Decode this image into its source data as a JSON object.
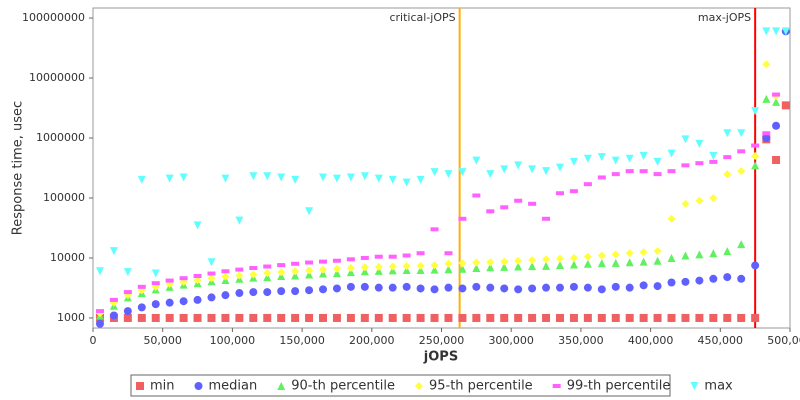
{
  "chart_data": {
    "type": "scatter",
    "x_label": "jOPS",
    "y_label": "Response time, usec",
    "log_y": true,
    "xlim": [
      0,
      500000
    ],
    "ylim": [
      680,
      147000000
    ],
    "xticks": [
      0,
      {
        "value": 50000,
        "label": "50,000"
      },
      {
        "value": 100000,
        "label": "100,000"
      },
      {
        "value": 150000,
        "label": "150,000"
      },
      {
        "value": 200000,
        "label": "200,000"
      },
      {
        "value": 250000,
        "label": "250,000"
      },
      {
        "value": 300000,
        "label": "300,000"
      },
      {
        "value": 350000,
        "label": "350,000"
      },
      {
        "value": 400000,
        "label": "400,000"
      },
      {
        "value": 450000,
        "label": "450,000"
      },
      {
        "value": 500000,
        "label": "500,000"
      }
    ],
    "yticks": [
      1000,
      10000,
      100000,
      1000000,
      10000000,
      100000000
    ],
    "markers": [
      {
        "label": "critical-jOPS",
        "value": 263000,
        "color": "#ffb000"
      },
      {
        "label": "max-jOPS",
        "value": 475000,
        "color": "#ff0000"
      }
    ],
    "x": [
      5000,
      15000,
      25000,
      35000,
      45000,
      55000,
      65000,
      75000,
      85000,
      95000,
      105000,
      115000,
      125000,
      135000,
      145000,
      155000,
      165000,
      175000,
      185000,
      195000,
      205000,
      215000,
      225000,
      235000,
      245000,
      255000,
      265000,
      275000,
      285000,
      295000,
      305000,
      315000,
      325000,
      335000,
      345000,
      355000,
      365000,
      375000,
      385000,
      395000,
      405000,
      415000,
      425000,
      435000,
      445000,
      455000,
      465000,
      475000,
      483000,
      490000,
      497000
    ],
    "series": [
      {
        "name": "min",
        "color": "#f06060",
        "marker": "square",
        "values": [
          1000,
          1000,
          1000,
          1000,
          1000,
          1000,
          1000,
          1000,
          1000,
          1000,
          1000,
          1000,
          1000,
          1000,
          1000,
          1000,
          1000,
          1000,
          1000,
          1000,
          1000,
          1000,
          1000,
          1000,
          1000,
          1000,
          1000,
          1000,
          1000,
          1000,
          1000,
          1000,
          1000,
          1000,
          1000,
          1000,
          1000,
          1000,
          1000,
          1000,
          1000,
          1000,
          1000,
          1000,
          1000,
          1000,
          1000,
          1000,
          950000,
          430000,
          3500000
        ]
      },
      {
        "name": "median",
        "color": "#6060ff",
        "marker": "circle",
        "values": [
          800,
          1100,
          1300,
          1500,
          1700,
          1800,
          1900,
          2000,
          2200,
          2400,
          2600,
          2700,
          2700,
          2800,
          2800,
          2900,
          3000,
          3100,
          3300,
          3300,
          3200,
          3200,
          3300,
          3100,
          3000,
          3200,
          3100,
          3300,
          3200,
          3100,
          3000,
          3100,
          3200,
          3200,
          3300,
          3200,
          3000,
          3300,
          3200,
          3500,
          3400,
          3900,
          4000,
          4200,
          4500,
          4800,
          4500,
          7500,
          1000000,
          1600000,
          60000000
        ]
      },
      {
        "name": "90-th percentile",
        "color": "#60f060",
        "marker": "triangle",
        "values": [
          1100,
          1600,
          2200,
          2600,
          3000,
          3300,
          3600,
          3800,
          4100,
          4300,
          4500,
          4700,
          4800,
          5000,
          5100,
          5300,
          5500,
          5600,
          5800,
          6000,
          6100,
          6200,
          6300,
          6300,
          6400,
          6500,
          6600,
          6800,
          7000,
          7100,
          7200,
          7300,
          7400,
          7600,
          7800,
          8000,
          8200,
          8300,
          8500,
          8700,
          9000,
          10000,
          11000,
          11500,
          12000,
          13000,
          17000,
          350000,
          4500000,
          4000000,
          null
        ]
      },
      {
        "name": "95-th percentile",
        "color": "#ffff40",
        "marker": "diamond",
        "values": [
          1200,
          1800,
          2400,
          2900,
          3300,
          3700,
          4000,
          4300,
          4600,
          4900,
          5100,
          5300,
          5600,
          5800,
          6000,
          6200,
          6400,
          6600,
          6800,
          7000,
          7100,
          7200,
          7300,
          7400,
          7600,
          8000,
          8200,
          8400,
          8500,
          8700,
          9000,
          9200,
          9500,
          9800,
          10000,
          10500,
          11000,
          11500,
          12000,
          12500,
          13000,
          45000,
          80000,
          90000,
          100000,
          250000,
          280000,
          500000,
          17000000,
          5000000,
          null
        ]
      },
      {
        "name": "99-th percentile",
        "color": "#ff60ff",
        "marker": "dash",
        "values": [
          1300,
          2000,
          2700,
          3300,
          3800,
          4200,
          4600,
          5000,
          5500,
          6000,
          6400,
          6800,
          7200,
          7600,
          8000,
          8400,
          8700,
          9000,
          9500,
          10000,
          10500,
          10500,
          11000,
          12000,
          30000,
          12000,
          45000,
          110000,
          60000,
          70000,
          90000,
          80000,
          45000,
          120000,
          130000,
          170000,
          220000,
          250000,
          280000,
          280000,
          250000,
          280000,
          350000,
          380000,
          400000,
          480000,
          600000,
          750000,
          1200000,
          5300000,
          null
        ]
      },
      {
        "name": "max",
        "color": "#60ffff",
        "marker": "triangle-down",
        "values": [
          6000,
          13000,
          5800,
          200000,
          5500,
          210000,
          220000,
          35000,
          8500,
          210000,
          42000,
          230000,
          230000,
          220000,
          200000,
          60000,
          220000,
          210000,
          220000,
          230000,
          210000,
          200000,
          180000,
          200000,
          270000,
          250000,
          270000,
          420000,
          250000,
          300000,
          350000,
          300000,
          280000,
          320000,
          400000,
          450000,
          480000,
          420000,
          450000,
          500000,
          400000,
          550000,
          950000,
          800000,
          500000,
          1200000,
          1200000,
          2800000,
          60000000,
          60000000,
          60000000
        ]
      }
    ]
  }
}
